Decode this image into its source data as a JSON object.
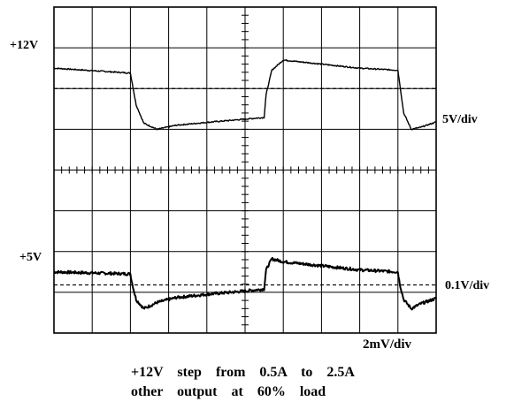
{
  "chart_data": {
    "type": "line",
    "title": "",
    "xlabel": "",
    "ylabel": "",
    "grid": true,
    "x_divisions": 10,
    "y_divisions": 8,
    "traces": {
      "upper": {
        "level_label": "+12V",
        "scale_label": "5V/div",
        "x": [
          0,
          2.0,
          2.15,
          2.35,
          2.7,
          3.2,
          4.0,
          5.0,
          5.5,
          5.55,
          5.7,
          6.0,
          7.0,
          8.0,
          9.0,
          9.15,
          9.35,
          9.6,
          10.0
        ],
        "y": [
          6.5,
          6.38,
          5.6,
          5.15,
          5.0,
          5.1,
          5.17,
          5.25,
          5.29,
          5.85,
          6.45,
          6.7,
          6.6,
          6.5,
          6.45,
          5.4,
          5.0,
          5.05,
          5.18
        ]
      },
      "upper_reference": {
        "y": 6.0
      },
      "lower": {
        "level_label": "+5V",
        "scale_label": "0.1V/div",
        "x": [
          0,
          2.0,
          2.05,
          2.15,
          2.35,
          2.7,
          3.2,
          4.0,
          5.0,
          5.5,
          5.55,
          5.7,
          6.0,
          7.0,
          8.0,
          9.0,
          9.05,
          9.15,
          9.35,
          9.6,
          10.0
        ],
        "y": [
          1.5,
          1.45,
          1.2,
          0.82,
          0.6,
          0.75,
          0.87,
          0.95,
          1.03,
          1.08,
          1.55,
          1.82,
          1.75,
          1.65,
          1.55,
          1.5,
          1.2,
          0.82,
          0.6,
          0.72,
          0.85
        ]
      },
      "lower_reference": {
        "y": 1.18
      }
    },
    "time_scale_label": "2mV/div"
  },
  "caption": {
    "line1": "+12V  step  from  0.5A  to  2.5A",
    "line2": "other  output  at  60%  load"
  }
}
